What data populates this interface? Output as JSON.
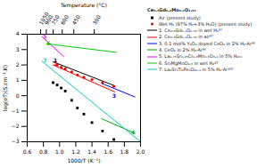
{
  "chart_data": {
    "type": "line",
    "x2label": "Temperature (°C)",
    "xlabel": "1000/T (K⁻¹)",
    "ylabel": "log(σT)(S.cm⁻¹.K)",
    "xlim": [
      0.6,
      2.0
    ],
    "xticks": [
      0.6,
      0.8,
      {
        "value": 1,
        "label": "1.0"
      },
      1.2,
      1.4,
      1.6,
      1.8,
      {
        "value": 2,
        "label": "2.0"
      }
    ],
    "x2ticks": [
      {
        "value": 0.766,
        "label": "1050"
      },
      {
        "value": 0.836,
        "label": "900"
      },
      {
        "value": 0.921,
        "label": "750"
      },
      {
        "value": 1.033,
        "label": "600"
      },
      {
        "value": 1.176,
        "label": "450"
      },
      {
        "value": 1.429,
        "label": "300"
      }
    ],
    "ylim": [
      -3,
      4
    ],
    "yticks": [
      -3,
      -2,
      -1,
      0,
      1,
      2,
      3,
      4
    ],
    "grid": false,
    "legend": "right",
    "legend_title": "Ce₀.₆Gd₀.₃Mo₀.₁O₁.₉₅",
    "series": [
      {
        "name": "Air (present study)",
        "type": "scatter",
        "marker": "square",
        "color": "#000000",
        "x": [
          0.92,
          0.97,
          1.02,
          1.07,
          1.15,
          1.22,
          1.3,
          1.4,
          1.53,
          1.67
        ],
        "values": [
          0.85,
          0.7,
          0.5,
          0.3,
          -0.3,
          -0.8,
          -1.2,
          -1.75,
          -2.3,
          -2.85
        ]
      },
      {
        "name": "Wet H₂ (97% H₂+3% H₂O) (present study)",
        "type": "scatter",
        "marker": "circle",
        "color": "#ff0000",
        "x": [
          0.97,
          1.02,
          1.07,
          1.15,
          1.22,
          1.3,
          1.4,
          1.53,
          1.67
        ],
        "values": [
          2.0,
          1.85,
          1.75,
          1.55,
          1.35,
          1.2,
          1.05,
          0.85,
          0.6
        ]
      },
      {
        "name": "1. Ce₀.₅Gd₀.₁O₁.ₕ₅ in wet H₂⁹⁷",
        "type": "line",
        "color": "#000000",
        "x": [
          0.92,
          1.68
        ],
        "values": [
          2.2,
          0.65
        ]
      },
      {
        "name": "2. Ce₀.₅Gd₀.₁O₁.ₕ₅ in air⁹⁷",
        "type": "line",
        "color": "#ff0000",
        "x": [
          0.92,
          1.68
        ],
        "values": [
          2.0,
          0.25
        ]
      },
      {
        "name": "3. 0.1 mol% Y₂O₃ doped CeO₂ in 2% H₂-Ar⁹⁸",
        "type": "line",
        "color": "#0000ff",
        "x": [
          1.52,
          1.93
        ],
        "values": [
          0.8,
          -0.08
        ]
      },
      {
        "name": "4. CeO₂ in 2% H₂-Ar⁹⁸",
        "type": "line",
        "color": "#00aa00",
        "x": [
          1.52,
          1.93
        ],
        "values": [
          -1.5,
          -2.45
        ]
      },
      {
        "name": "5. La₀.₇₅Sr₀.₂₅Cr₀.₅Mn₀.₅O₃.₄ in 5% H₂ₙₙ",
        "type": "line",
        "color": "#ff00ff",
        "x": [
          0.78,
          1.05
        ],
        "values": [
          3.85,
          2.55
        ]
      },
      {
        "name": "6. Sr₂MgMoO₆.₅ in wet H₂²⁹",
        "type": "line",
        "color": "#00cc00",
        "x": [
          0.84,
          1.7
        ],
        "values": [
          3.38,
          2.82
        ]
      },
      {
        "name": "7. La₄Sr₄Ti₆Fe₆O₂₆.₄ in 5% H₂-Ar¹⁰⁰",
        "type": "line",
        "color": "#00cccc",
        "x": [
          0.78,
          2.0
        ],
        "values": [
          2.25,
          -3.0
        ]
      }
    ],
    "annotations": [
      {
        "text": "5",
        "x": 0.795,
        "y": 3.72,
        "color": "#ff00ff"
      },
      {
        "text": "6",
        "x": 0.84,
        "y": 3.28,
        "color": "#00cc00"
      },
      {
        "text": "7",
        "x": 0.795,
        "y": 2.18,
        "color": "#00cccc"
      },
      {
        "text": "1",
        "x": 0.925,
        "y": 2.17,
        "color": "#000000"
      },
      {
        "text": "2",
        "x": 0.925,
        "y": 1.92,
        "color": "#ff0000"
      },
      {
        "text": "3",
        "x": 1.65,
        "y": -0.12,
        "color": "#0000ff"
      },
      {
        "text": "4",
        "x": 1.885,
        "y": -2.5,
        "color": "#00aa00"
      }
    ]
  }
}
